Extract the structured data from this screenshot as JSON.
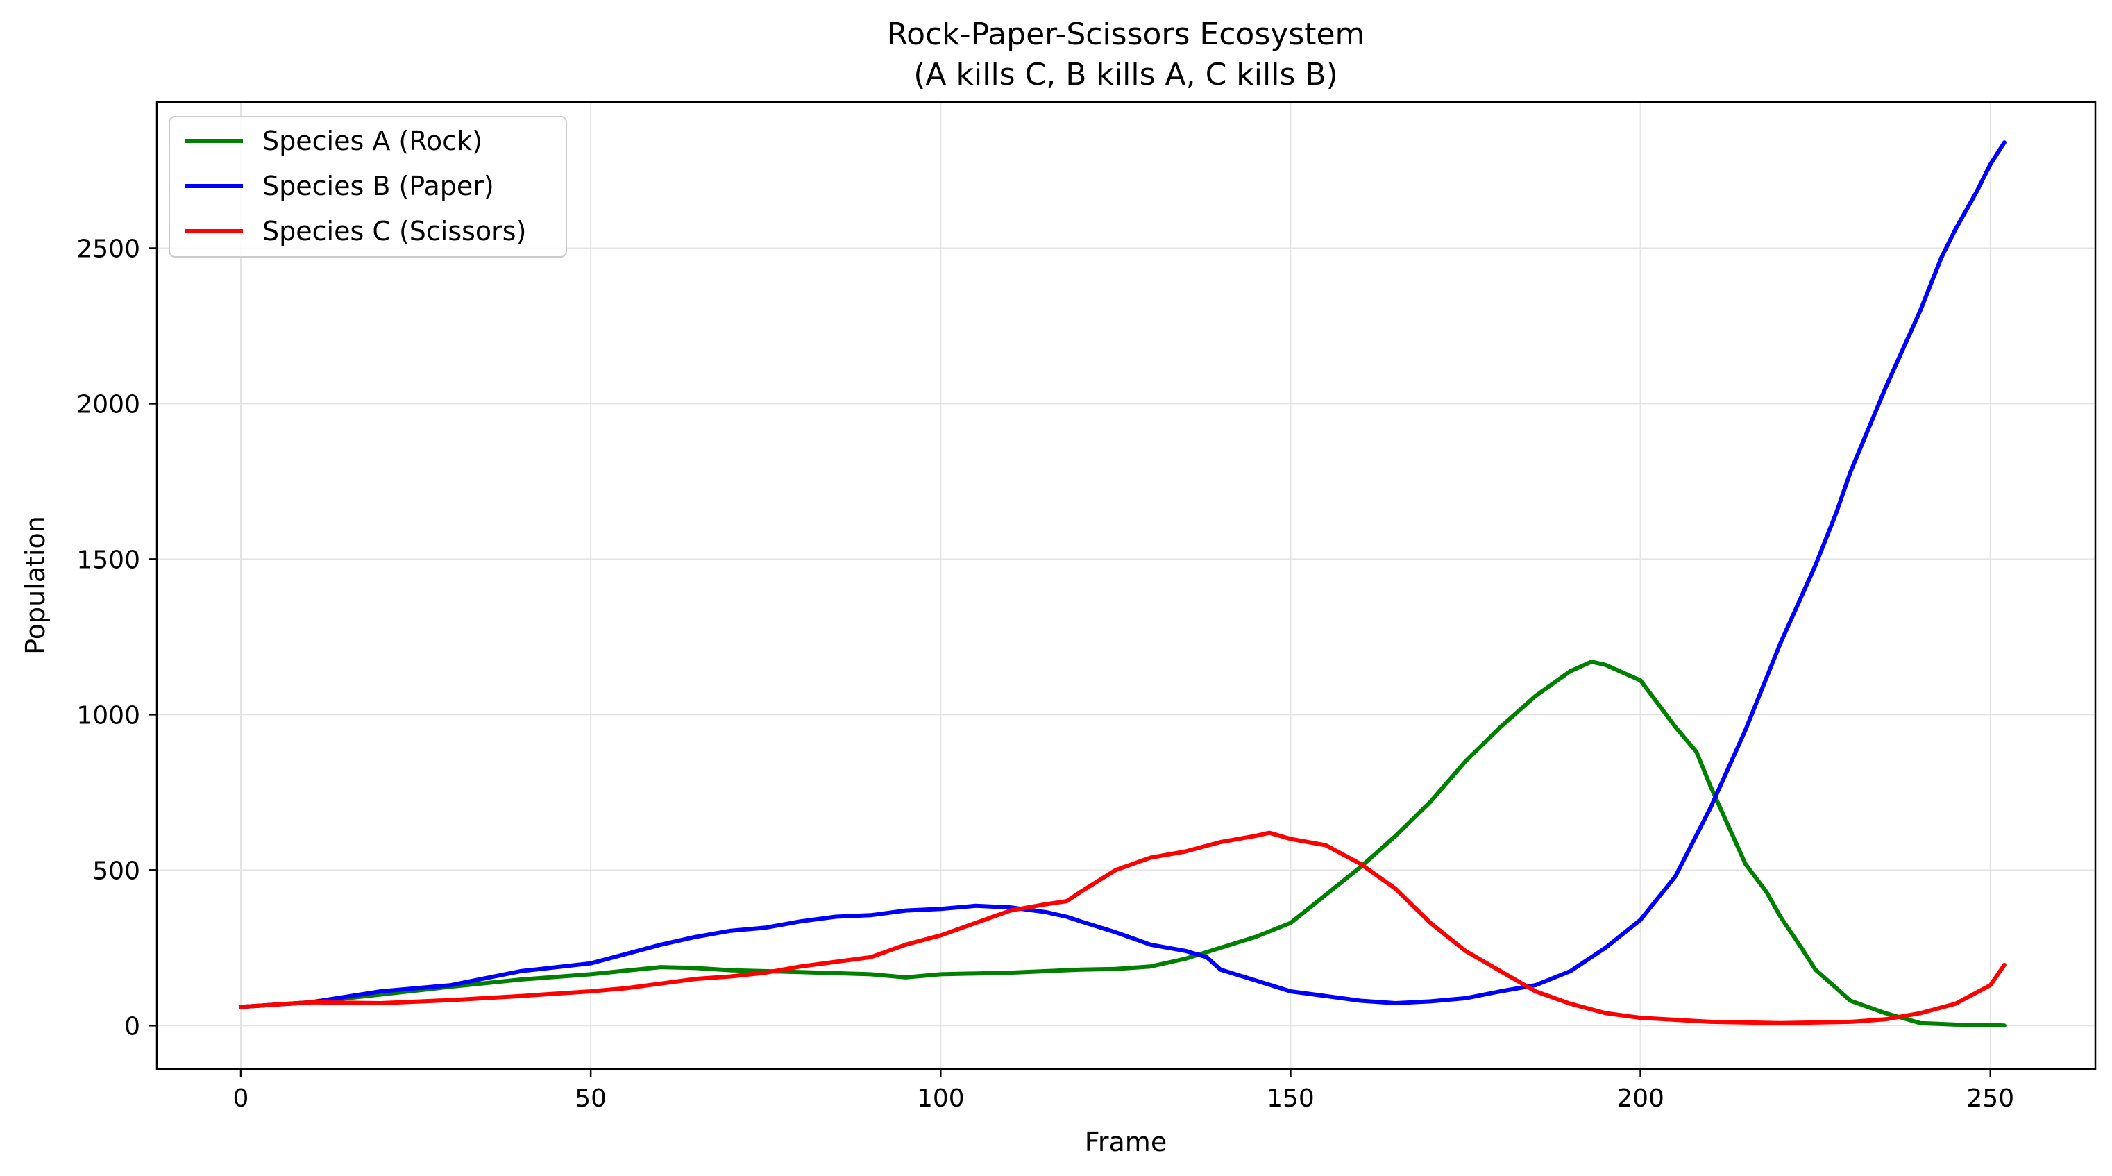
{
  "chart_data": {
    "type": "line",
    "title": "Rock-Paper-Scissors Ecosystem",
    "subtitle": "(A kills C, B kills A, C kills B)",
    "xlabel": "Frame",
    "ylabel": "Population",
    "xlim": [
      -12,
      265
    ],
    "ylim": [
      -140,
      2970
    ],
    "xticks": [
      0,
      50,
      100,
      150,
      200,
      250
    ],
    "yticks": [
      0,
      500,
      1000,
      1500,
      2000,
      2500
    ],
    "grid": true,
    "legend_position": "upper-left",
    "series": [
      {
        "name": "Species A (Rock)",
        "color": "#008000",
        "points": [
          [
            0,
            60
          ],
          [
            10,
            75
          ],
          [
            20,
            100
          ],
          [
            30,
            125
          ],
          [
            40,
            148
          ],
          [
            50,
            165
          ],
          [
            60,
            188
          ],
          [
            65,
            185
          ],
          [
            70,
            178
          ],
          [
            80,
            172
          ],
          [
            90,
            165
          ],
          [
            95,
            155
          ],
          [
            100,
            165
          ],
          [
            110,
            170
          ],
          [
            120,
            180
          ],
          [
            125,
            182
          ],
          [
            130,
            190
          ],
          [
            135,
            215
          ],
          [
            140,
            250
          ],
          [
            145,
            285
          ],
          [
            150,
            330
          ],
          [
            155,
            420
          ],
          [
            160,
            510
          ],
          [
            165,
            610
          ],
          [
            170,
            720
          ],
          [
            175,
            850
          ],
          [
            180,
            960
          ],
          [
            185,
            1060
          ],
          [
            190,
            1140
          ],
          [
            193,
            1170
          ],
          [
            195,
            1160
          ],
          [
            200,
            1110
          ],
          [
            203,
            1020
          ],
          [
            205,
            960
          ],
          [
            208,
            880
          ],
          [
            210,
            770
          ],
          [
            213,
            620
          ],
          [
            215,
            520
          ],
          [
            218,
            430
          ],
          [
            220,
            350
          ],
          [
            223,
            250
          ],
          [
            225,
            180
          ],
          [
            228,
            120
          ],
          [
            230,
            80
          ],
          [
            235,
            40
          ],
          [
            240,
            8
          ],
          [
            245,
            3
          ],
          [
            250,
            2
          ],
          [
            252,
            0
          ]
        ]
      },
      {
        "name": "Species B (Paper)",
        "color": "#0000ff",
        "points": [
          [
            0,
            60
          ],
          [
            10,
            75
          ],
          [
            20,
            110
          ],
          [
            30,
            130
          ],
          [
            40,
            175
          ],
          [
            50,
            200
          ],
          [
            55,
            230
          ],
          [
            60,
            260
          ],
          [
            65,
            285
          ],
          [
            70,
            305
          ],
          [
            75,
            315
          ],
          [
            80,
            335
          ],
          [
            85,
            350
          ],
          [
            90,
            355
          ],
          [
            95,
            370
          ],
          [
            100,
            375
          ],
          [
            105,
            385
          ],
          [
            110,
            380
          ],
          [
            115,
            365
          ],
          [
            118,
            350
          ],
          [
            120,
            335
          ],
          [
            125,
            300
          ],
          [
            130,
            260
          ],
          [
            135,
            240
          ],
          [
            138,
            220
          ],
          [
            140,
            180
          ],
          [
            145,
            145
          ],
          [
            150,
            110
          ],
          [
            155,
            95
          ],
          [
            160,
            80
          ],
          [
            165,
            72
          ],
          [
            170,
            78
          ],
          [
            175,
            88
          ],
          [
            180,
            110
          ],
          [
            185,
            130
          ],
          [
            190,
            175
          ],
          [
            195,
            250
          ],
          [
            200,
            340
          ],
          [
            205,
            480
          ],
          [
            210,
            700
          ],
          [
            215,
            950
          ],
          [
            220,
            1230
          ],
          [
            225,
            1480
          ],
          [
            228,
            1650
          ],
          [
            230,
            1780
          ],
          [
            235,
            2050
          ],
          [
            240,
            2300
          ],
          [
            243,
            2470
          ],
          [
            245,
            2560
          ],
          [
            248,
            2680
          ],
          [
            250,
            2770
          ],
          [
            252,
            2840
          ]
        ]
      },
      {
        "name": "Species C (Scissors)",
        "color": "#ff0000",
        "points": [
          [
            0,
            60
          ],
          [
            10,
            75
          ],
          [
            20,
            72
          ],
          [
            30,
            82
          ],
          [
            40,
            95
          ],
          [
            50,
            110
          ],
          [
            55,
            120
          ],
          [
            60,
            135
          ],
          [
            65,
            150
          ],
          [
            70,
            158
          ],
          [
            75,
            170
          ],
          [
            80,
            190
          ],
          [
            85,
            205
          ],
          [
            90,
            220
          ],
          [
            95,
            260
          ],
          [
            100,
            290
          ],
          [
            105,
            330
          ],
          [
            110,
            370
          ],
          [
            115,
            390
          ],
          [
            118,
            400
          ],
          [
            120,
            430
          ],
          [
            125,
            500
          ],
          [
            130,
            540
          ],
          [
            135,
            560
          ],
          [
            140,
            590
          ],
          [
            145,
            610
          ],
          [
            147,
            620
          ],
          [
            150,
            600
          ],
          [
            155,
            580
          ],
          [
            160,
            520
          ],
          [
            165,
            440
          ],
          [
            170,
            330
          ],
          [
            175,
            240
          ],
          [
            180,
            175
          ],
          [
            185,
            110
          ],
          [
            190,
            70
          ],
          [
            195,
            40
          ],
          [
            200,
            25
          ],
          [
            210,
            12
          ],
          [
            220,
            8
          ],
          [
            230,
            12
          ],
          [
            235,
            20
          ],
          [
            240,
            40
          ],
          [
            245,
            70
          ],
          [
            250,
            130
          ],
          [
            252,
            195
          ]
        ]
      }
    ]
  }
}
